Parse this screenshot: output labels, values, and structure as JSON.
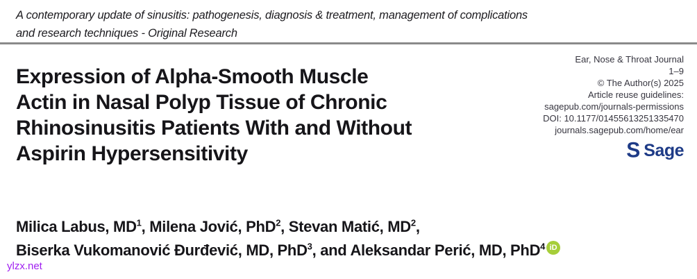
{
  "series_note": {
    "lines": [
      "A contemporary update of sinusitis: pathogenesis, diagnosis & treatment, management of complications",
      "and research techniques - Original Research"
    ]
  },
  "title": {
    "lines": [
      "Expression of Alpha-Smooth Muscle",
      "Actin in Nasal Polyp Tissue of Chronic",
      "Rhinosinusitis Patients With and Without",
      "Aspirin Hypersensitivity"
    ]
  },
  "journal": {
    "name": "Ear, Nose & Throat Journal",
    "pages": "1–9",
    "copyright": "© The Author(s) 2025",
    "reuse_label": "Article reuse guidelines:",
    "permissions_url": "sagepub.com/journals-permissions",
    "doi": "DOI: 10.1177/01455613251335470",
    "home_url": "journals.sagepub.com/home/ear",
    "logo": {
      "glyph": "S",
      "word": "Sage",
      "color": "#1e3b87"
    }
  },
  "authors": {
    "segments": [
      {
        "name": "Milica Labus, MD",
        "sup": "1",
        "sep": ", "
      },
      {
        "name": "Milena Jović, PhD",
        "sup": "2",
        "sep": ", "
      },
      {
        "name": "Stevan Matić, MD",
        "sup": "2",
        "sep": ","
      },
      {
        "name": "Biserka Vukomanović Đurđević, MD, PhD",
        "sup": "3",
        "sep": ", and "
      },
      {
        "name": "Aleksandar Perić, MD, PhD",
        "sup": "4",
        "sep": ""
      }
    ],
    "orcid_label": "iD"
  },
  "watermark": {
    "text": "ylzx.net",
    "color": "#a020f0"
  },
  "colors": {
    "text": "#1c1b1f",
    "rule": "#8a8a8a",
    "accent_navy": "#1e3b87",
    "orcid_green": "#a6ce39"
  }
}
